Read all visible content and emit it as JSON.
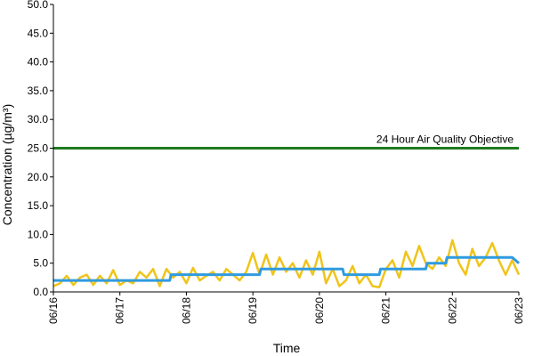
{
  "chart_data": {
    "type": "line",
    "title": "",
    "xlabel": "Time",
    "ylabel": "Concentration (µg/m³)",
    "ylim": [
      0,
      50
    ],
    "y_ticks": [
      "0.0",
      "5.0",
      "10.0",
      "15.0",
      "20.0",
      "25.0",
      "30.0",
      "35.0",
      "40.0",
      "45.0",
      "50.0"
    ],
    "x_ticks": [
      "06/16",
      "06/17",
      "06/18",
      "06/19",
      "06/20",
      "06/21",
      "06/22",
      "06/23"
    ],
    "grid": false,
    "legend": "none",
    "reference_line": {
      "label": "24 Hour Air Quality Objective",
      "value": 25,
      "color": "#1f7a1f"
    },
    "series": [
      {
        "kind": "hourly",
        "color": "#f0c419",
        "x_days": [
          0.0,
          0.1,
          0.2,
          0.3,
          0.4,
          0.5,
          0.6,
          0.7,
          0.8,
          0.9,
          1.0,
          1.1,
          1.2,
          1.3,
          1.4,
          1.5,
          1.6,
          1.7,
          1.8,
          1.9,
          2.0,
          2.1,
          2.2,
          2.3,
          2.4,
          2.5,
          2.6,
          2.7,
          2.8,
          2.9,
          3.0,
          3.1,
          3.2,
          3.3,
          3.4,
          3.5,
          3.6,
          3.7,
          3.8,
          3.9,
          4.0,
          4.1,
          4.2,
          4.3,
          4.4,
          4.5,
          4.6,
          4.7,
          4.8,
          4.9,
          5.0,
          5.1,
          5.2,
          5.3,
          5.4,
          5.5,
          5.6,
          5.7,
          5.8,
          5.9,
          6.0,
          6.1,
          6.2,
          6.3,
          6.4,
          6.5,
          6.6,
          6.7,
          6.8,
          6.9,
          7.0
        ],
        "values": [
          1.0,
          1.5,
          2.8,
          1.2,
          2.5,
          3.0,
          1.2,
          2.8,
          1.5,
          3.8,
          1.2,
          2.0,
          1.5,
          3.5,
          2.5,
          4.0,
          1.0,
          4.0,
          2.5,
          3.5,
          1.5,
          4.2,
          2.0,
          2.8,
          3.5,
          2.0,
          4.0,
          3.0,
          2.0,
          3.5,
          6.8,
          3.0,
          6.5,
          3.0,
          6.0,
          3.5,
          5.0,
          2.5,
          5.5,
          3.0,
          7.0,
          1.5,
          4.0,
          1.0,
          2.0,
          4.5,
          1.5,
          3.0,
          1.0,
          0.8,
          4.0,
          5.5,
          2.5,
          7.0,
          4.5,
          8.0,
          5.0,
          4.0,
          6.0,
          4.5,
          9.0,
          5.0,
          3.0,
          7.5,
          4.5,
          6.0,
          8.5,
          5.5,
          3.0,
          5.5,
          3.0
        ]
      },
      {
        "kind": "24-hour rolling average",
        "color": "#2f9be0",
        "x_days": [
          0.0,
          1.75,
          1.77,
          3.1,
          3.12,
          4.35,
          4.37,
          4.9,
          4.92,
          5.6,
          5.62,
          5.9,
          5.92,
          6.9,
          7.0
        ],
        "values": [
          2.0,
          2.0,
          3.0,
          3.0,
          4.0,
          4.0,
          3.0,
          3.0,
          4.0,
          4.0,
          5.0,
          5.0,
          6.0,
          6.0,
          5.0
        ]
      }
    ]
  }
}
